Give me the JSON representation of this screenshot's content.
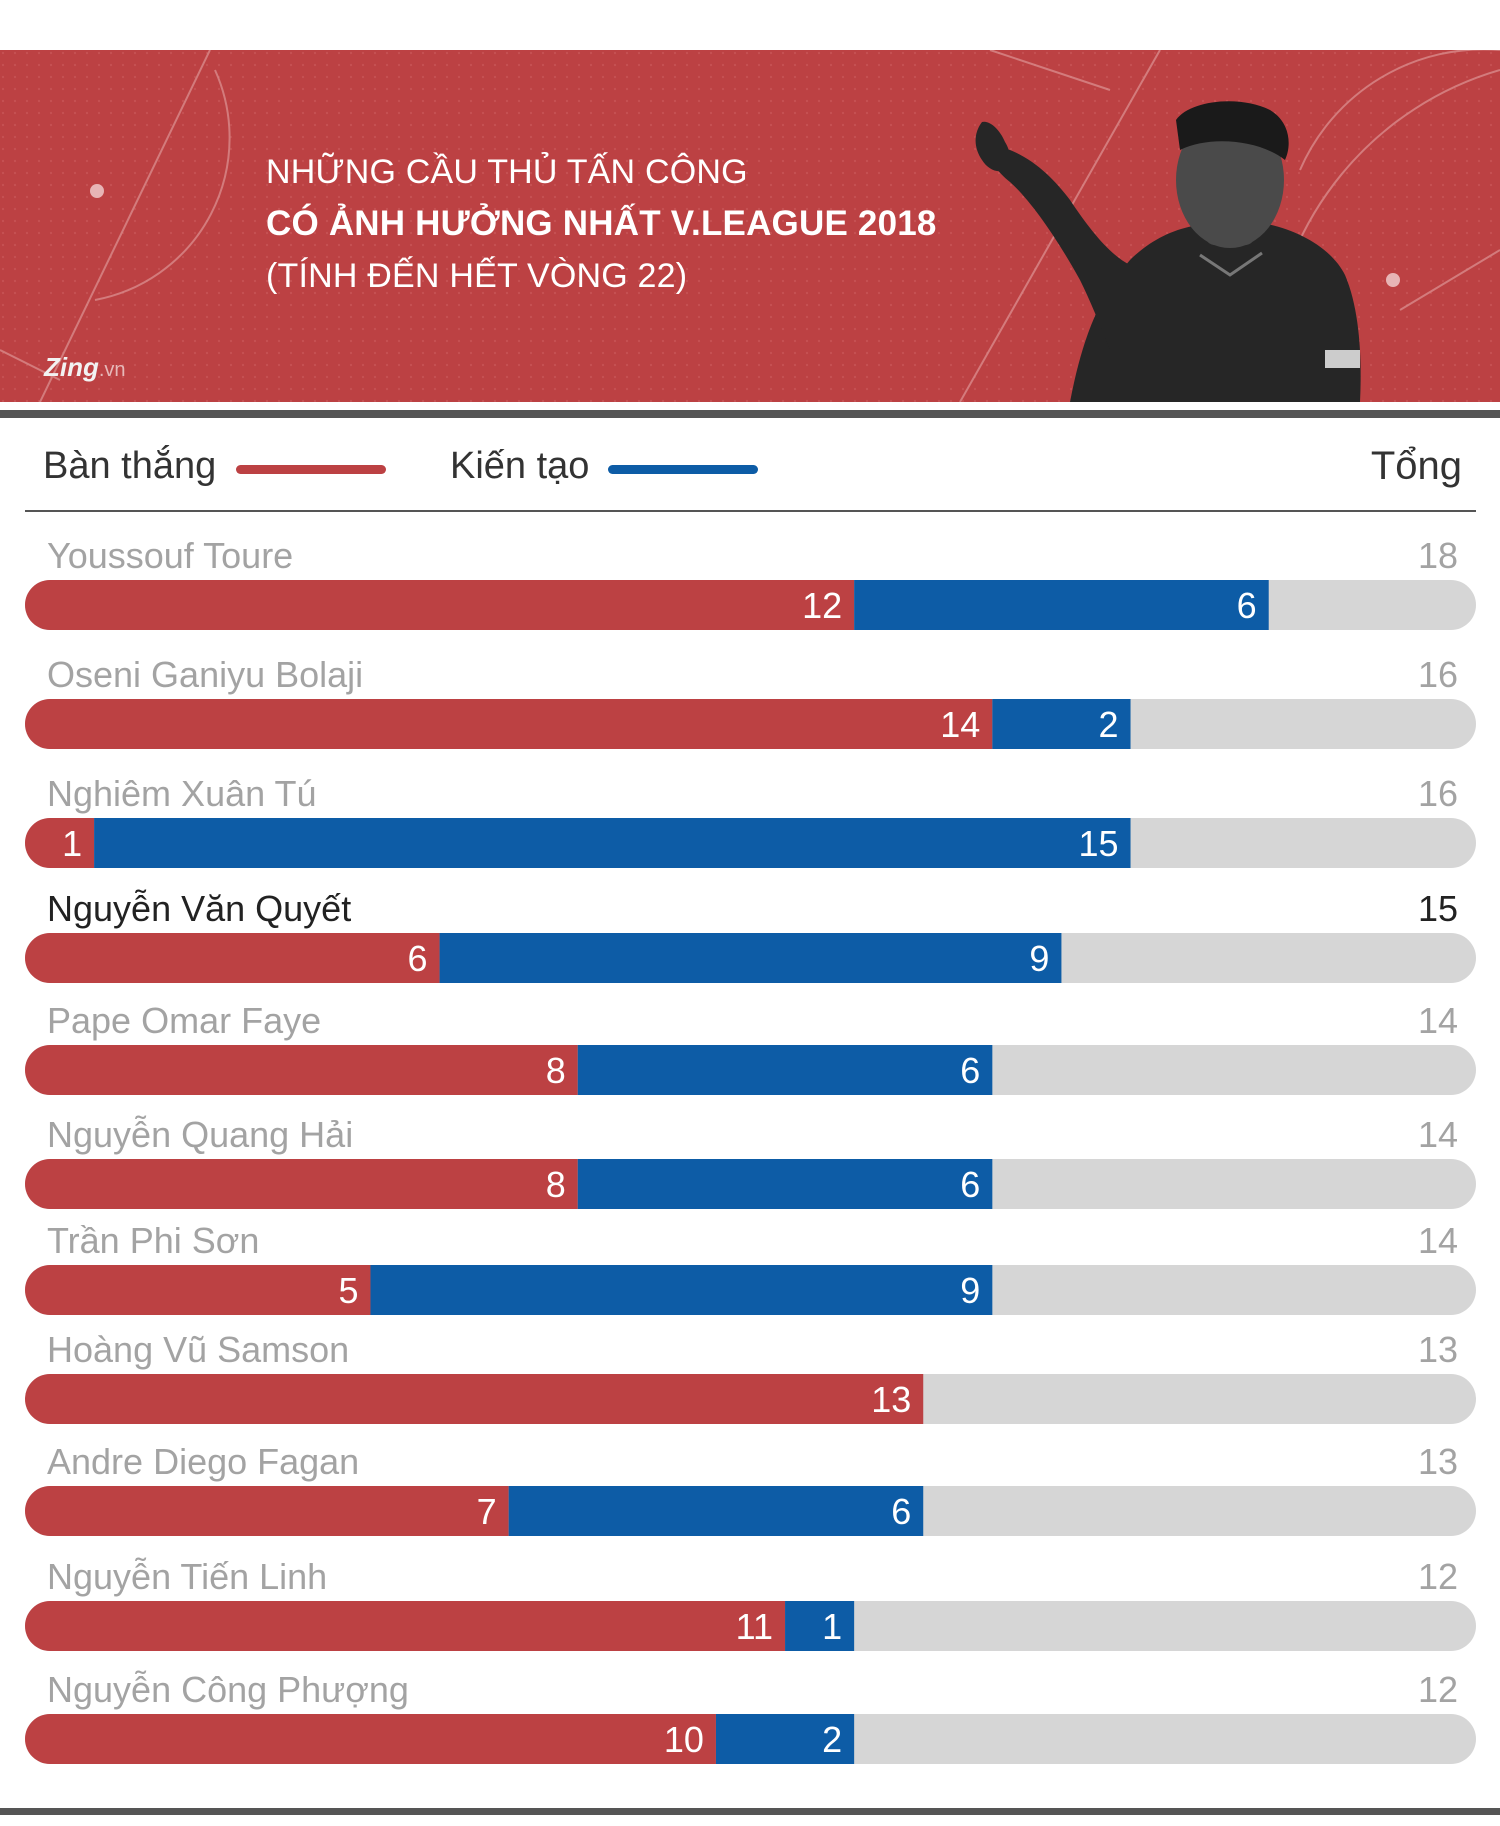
{
  "header": {
    "title_line1": "NHỮNG CẦU THỦ TẤN CÔNG",
    "title_line2": "CÓ ẢNH HƯỞNG NHẤT V.LEAGUE 2018",
    "title_line3": "(TÍNH ĐẾN HẾT VÒNG 22)",
    "logo_text": "Zing",
    "logo_suffix": ".vn"
  },
  "colors": {
    "banner": "#bc4143",
    "goals": "#bc4143",
    "assists": "#0d5ca6",
    "track": "#d6d6d6",
    "name_normal": "#a3a3a3",
    "name_highlight": "#222222"
  },
  "chart_data": {
    "type": "bar",
    "orientation": "horizontal-stacked",
    "legend": {
      "goals_label": "Bàn thắng",
      "assists_label": "Kiến tạo",
      "total_label": "Tổng"
    },
    "xlim": [
      0,
      21
    ],
    "series": [
      {
        "name": "Bàn thắng",
        "values": [
          12,
          14,
          1,
          6,
          8,
          8,
          5,
          13,
          7,
          11,
          10
        ]
      },
      {
        "name": "Kiến tạo",
        "values": [
          6,
          2,
          15,
          9,
          6,
          6,
          9,
          0,
          6,
          1,
          2
        ]
      }
    ],
    "players": [
      {
        "name": "Youssouf Toure",
        "goals": 12,
        "assists": 6,
        "total": 18,
        "highlight": false
      },
      {
        "name": "Oseni Ganiyu Bolaji",
        "goals": 14,
        "assists": 2,
        "total": 16,
        "highlight": false
      },
      {
        "name": "Nghiêm Xuân Tú",
        "goals": 1,
        "assists": 15,
        "total": 16,
        "highlight": false
      },
      {
        "name": "Nguyễn Văn Quyết",
        "goals": 6,
        "assists": 9,
        "total": 15,
        "highlight": true
      },
      {
        "name": "Pape Omar Faye",
        "goals": 8,
        "assists": 6,
        "total": 14,
        "highlight": false
      },
      {
        "name": "Nguyễn Quang Hải",
        "goals": 8,
        "assists": 6,
        "total": 14,
        "highlight": false
      },
      {
        "name": "Trần Phi Sơn",
        "goals": 5,
        "assists": 9,
        "total": 14,
        "highlight": false
      },
      {
        "name": "Hoàng Vũ Samson",
        "goals": 13,
        "assists": 0,
        "total": 13,
        "highlight": false
      },
      {
        "name": "Andre Diego Fagan",
        "goals": 7,
        "assists": 6,
        "total": 13,
        "highlight": false
      },
      {
        "name": "Nguyễn Tiến Linh",
        "goals": 11,
        "assists": 1,
        "total": 12,
        "highlight": false
      },
      {
        "name": "Nguyễn Công Phượng",
        "goals": 10,
        "assists": 2,
        "total": 12,
        "highlight": false
      }
    ]
  }
}
